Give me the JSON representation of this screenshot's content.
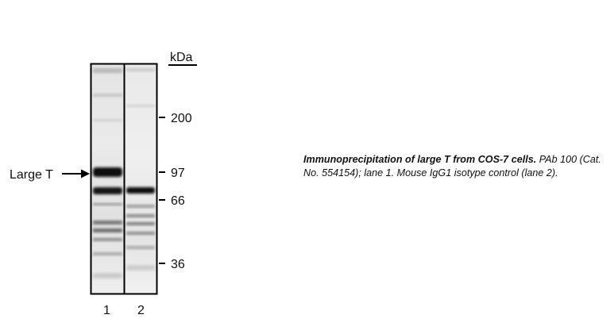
{
  "figure": {
    "unit_label": "kDa",
    "markers": [
      {
        "label": "200"
      },
      {
        "label": "97"
      },
      {
        "label": "66"
      },
      {
        "label": "36"
      }
    ],
    "annotation": {
      "label": "Large T"
    },
    "lanes": [
      {
        "label": "1"
      },
      {
        "label": "2"
      }
    ]
  },
  "caption": {
    "title": "Immunoprecipitation of large T from COS-7 cells.",
    "body": "PAb 100 (Cat. No. 554154); lane 1. Mouse IgG1 isotype control (lane 2)."
  }
}
